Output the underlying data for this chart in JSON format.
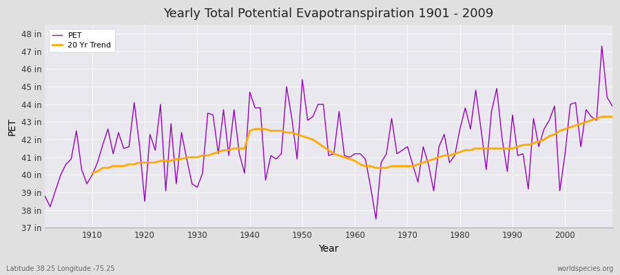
{
  "title": "Yearly Total Potential Evapotranspiration 1901 - 2009",
  "xlabel": "Year",
  "ylabel": "PET",
  "subtitle_left": "Latitude 38.25 Longitude -75.25",
  "subtitle_right": "worldspecies.org",
  "pet_color": "#9900bb",
  "trend_color": "#ffaa00",
  "fig_bg_color": "#e0e0e0",
  "plot_bg_color": "#e8e8ee",
  "grid_color": "#ffffff",
  "ylim": [
    37,
    48.5
  ],
  "yticks": [
    37,
    38,
    39,
    40,
    41,
    42,
    43,
    44,
    45,
    46,
    47,
    48
  ],
  "xticks": [
    1910,
    1920,
    1930,
    1940,
    1950,
    1960,
    1970,
    1980,
    1990,
    2000
  ],
  "xlim": [
    1901,
    2009
  ],
  "years": [
    1901,
    1902,
    1903,
    1904,
    1905,
    1906,
    1907,
    1908,
    1909,
    1910,
    1911,
    1912,
    1913,
    1914,
    1915,
    1916,
    1917,
    1918,
    1919,
    1920,
    1921,
    1922,
    1923,
    1924,
    1925,
    1926,
    1927,
    1928,
    1929,
    1930,
    1931,
    1932,
    1933,
    1934,
    1935,
    1936,
    1937,
    1938,
    1939,
    1940,
    1941,
    1942,
    1943,
    1944,
    1945,
    1946,
    1947,
    1948,
    1949,
    1950,
    1951,
    1952,
    1953,
    1954,
    1955,
    1956,
    1957,
    1958,
    1959,
    1960,
    1961,
    1962,
    1963,
    1964,
    1965,
    1966,
    1967,
    1968,
    1969,
    1970,
    1971,
    1972,
    1973,
    1974,
    1975,
    1976,
    1977,
    1978,
    1979,
    1980,
    1981,
    1982,
    1983,
    1984,
    1985,
    1986,
    1987,
    1988,
    1989,
    1990,
    1991,
    1992,
    1993,
    1994,
    1995,
    1996,
    1997,
    1998,
    1999,
    2000,
    2001,
    2002,
    2003,
    2004,
    2005,
    2006,
    2007,
    2008,
    2009
  ],
  "pet_values": [
    38.8,
    38.2,
    39.1,
    40.0,
    40.6,
    40.9,
    42.5,
    40.3,
    39.5,
    40.0,
    40.7,
    41.7,
    42.6,
    41.2,
    42.4,
    41.5,
    41.6,
    44.1,
    41.7,
    38.5,
    42.3,
    41.4,
    44.0,
    39.1,
    42.9,
    39.5,
    42.4,
    40.9,
    39.5,
    39.3,
    40.1,
    43.5,
    43.4,
    41.2,
    43.7,
    41.1,
    43.7,
    41.2,
    40.1,
    44.7,
    43.8,
    43.8,
    39.7,
    41.1,
    40.9,
    41.2,
    45.0,
    43.2,
    40.9,
    45.4,
    43.1,
    43.3,
    44.0,
    44.0,
    41.1,
    41.2,
    43.6,
    41.1,
    41.0,
    41.2,
    41.2,
    40.9,
    39.3,
    37.5,
    40.7,
    41.2,
    43.2,
    41.2,
    41.4,
    41.6,
    40.6,
    39.6,
    41.6,
    40.6,
    39.1,
    41.6,
    42.3,
    40.7,
    41.1,
    42.6,
    43.8,
    42.6,
    44.8,
    42.6,
    40.3,
    43.6,
    44.9,
    42.1,
    40.2,
    43.4,
    41.1,
    41.2,
    39.2,
    43.2,
    41.6,
    42.6,
    43.1,
    43.9,
    39.1,
    41.2,
    44.0,
    44.1,
    41.6,
    43.7,
    43.3,
    43.1,
    47.3,
    44.4,
    43.9
  ],
  "trend_values": [
    null,
    null,
    null,
    null,
    null,
    null,
    null,
    null,
    null,
    40.1,
    40.2,
    40.4,
    40.4,
    40.5,
    40.5,
    40.5,
    40.6,
    40.6,
    40.7,
    40.7,
    40.7,
    40.7,
    40.8,
    40.8,
    40.8,
    40.9,
    40.9,
    41.0,
    41.0,
    41.0,
    41.1,
    41.1,
    41.2,
    41.3,
    41.4,
    41.4,
    41.5,
    41.5,
    41.5,
    42.5,
    42.6,
    42.6,
    42.6,
    42.5,
    42.5,
    42.5,
    42.4,
    42.4,
    42.3,
    42.2,
    42.1,
    42.0,
    41.8,
    41.6,
    41.4,
    41.2,
    41.1,
    41.0,
    40.9,
    40.8,
    40.6,
    40.5,
    40.5,
    40.4,
    40.4,
    40.4,
    40.5,
    40.5,
    40.5,
    40.5,
    40.5,
    40.6,
    40.7,
    40.8,
    40.9,
    41.0,
    41.1,
    41.1,
    41.2,
    41.3,
    41.4,
    41.4,
    41.5,
    41.5,
    41.5,
    41.5,
    41.5,
    41.5,
    41.5,
    41.5,
    41.6,
    41.7,
    41.7,
    41.8,
    41.9,
    42.0,
    42.2,
    42.3,
    42.5,
    42.6,
    42.7,
    42.8,
    42.9,
    43.0,
    43.1,
    43.2,
    43.3,
    43.3,
    43.3
  ]
}
